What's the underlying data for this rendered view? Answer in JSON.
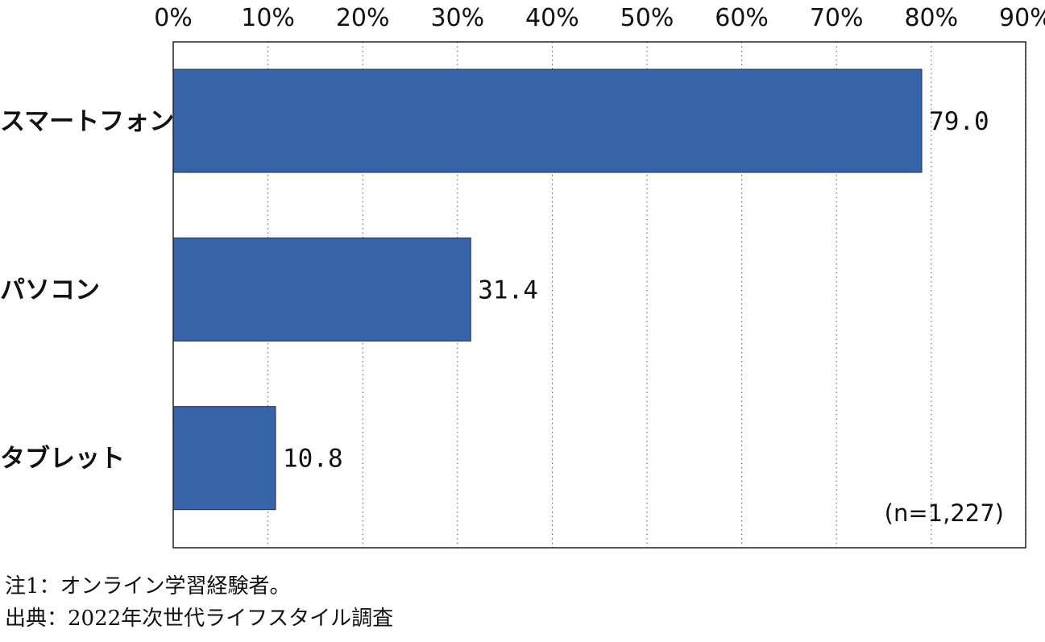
{
  "chart_data": {
    "type": "bar",
    "orientation": "horizontal",
    "categories": [
      "スマートフォン",
      "パソコン",
      "タブレット"
    ],
    "values": [
      79.0,
      31.4,
      10.8
    ],
    "value_labels": [
      "79.0",
      "31.4",
      "10.8"
    ],
    "xaxis": {
      "position": "top",
      "range": [
        0,
        90
      ],
      "ticks": [
        0,
        10,
        20,
        30,
        40,
        50,
        60,
        70,
        80,
        90
      ],
      "tick_labels": [
        "0%",
        "10%",
        "20%",
        "30%",
        "40%",
        "50%",
        "60%",
        "70%",
        "80%",
        "90%"
      ]
    },
    "grid": "vertical dotted",
    "sample_size_label": "(n=1,227)",
    "bar_color": "#3764a8",
    "xlabel": "",
    "ylabel": ""
  },
  "notes": {
    "note1": "注1：オンライン学習経験者。",
    "source": "出典：2022年次世代ライフスタイル調査"
  }
}
